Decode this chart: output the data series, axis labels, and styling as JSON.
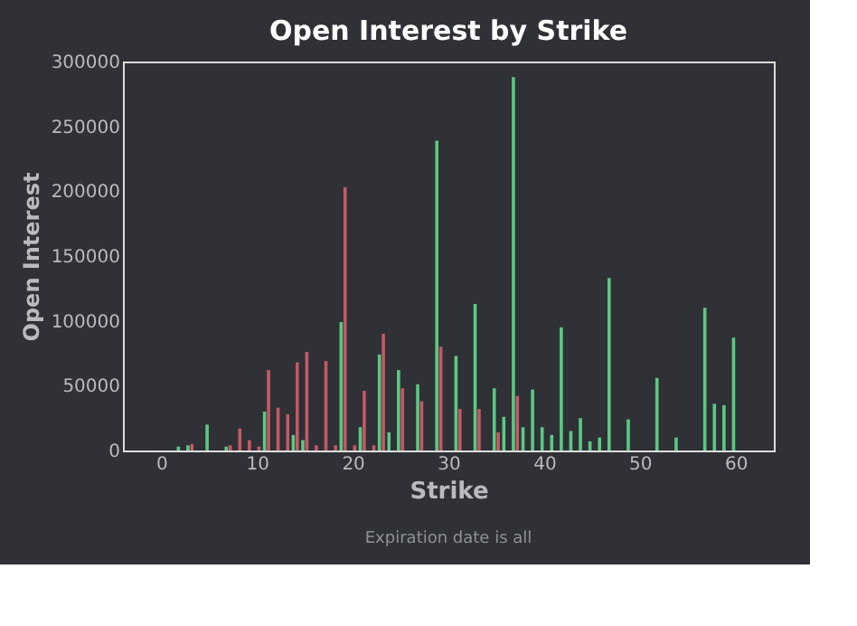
{
  "chart_data": {
    "type": "bar",
    "title": "Open Interest by Strike",
    "xlabel": "Strike",
    "ylabel": "Open Interest",
    "annotations": [
      "Expiration date is all"
    ],
    "series": [
      {
        "color": "#5cc983",
        "x": [
          2,
          3,
          5,
          7,
          11,
          14,
          15,
          19,
          21,
          23,
          24,
          25,
          27,
          29,
          31,
          33,
          35,
          36,
          37,
          38,
          39,
          40,
          41,
          42,
          43,
          44,
          45,
          46,
          47,
          49,
          52,
          54,
          57,
          58,
          59,
          60
        ],
        "values": [
          3000,
          4000,
          20000,
          3000,
          30000,
          12000,
          8000,
          99000,
          18000,
          74000,
          14000,
          62000,
          51000,
          239000,
          73000,
          113000,
          48000,
          26000,
          288000,
          18000,
          47000,
          18000,
          12000,
          95000,
          15000,
          25000,
          7000,
          10000,
          133000,
          24000,
          56000,
          10000,
          110000,
          36000,
          35000,
          87000
        ]
      },
      {
        "color": "#c45a66",
        "x": [
          3,
          7,
          8,
          9,
          10,
          11,
          12,
          13,
          14,
          15,
          16,
          17,
          18,
          19,
          20,
          21,
          22,
          23,
          25,
          27,
          29,
          31,
          33,
          35,
          37
        ],
        "values": [
          5000,
          4000,
          17000,
          8000,
          3000,
          62000,
          33000,
          28000,
          68000,
          76000,
          4000,
          69000,
          4000,
          203000,
          4000,
          46000,
          4000,
          90000,
          48000,
          38000,
          80000,
          32000,
          32000,
          14000,
          42000
        ]
      }
    ],
    "xlim": [
      -4,
      64
    ],
    "xticks": [
      0,
      10,
      20,
      30,
      40,
      50,
      60
    ],
    "ylim": [
      0,
      300000
    ],
    "yticks": [
      0,
      50000,
      100000,
      150000,
      200000,
      250000,
      300000
    ],
    "grid": false
  }
}
